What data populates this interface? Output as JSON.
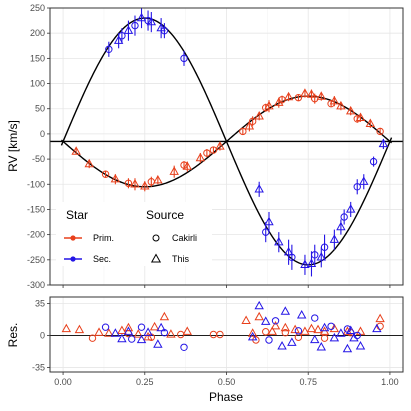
{
  "chart_data": [
    {
      "type": "scatter",
      "panel": "rv",
      "xlabel": "",
      "ylabel": "RV [km/s]",
      "xlim": [
        -0.04,
        1.04
      ],
      "ylim": [
        -300,
        250
      ],
      "x_ticks": [
        0.0,
        0.25,
        0.5,
        0.75,
        1.0
      ],
      "y_ticks": [
        -300,
        -250,
        -200,
        -150,
        -100,
        -50,
        0,
        50,
        100,
        150,
        200,
        250
      ],
      "y_tick_labels": [
        "-300",
        "-250",
        "-200",
        "-150",
        "-100",
        "-50",
        "0",
        "50",
        "100",
        "150",
        "200",
        "250"
      ],
      "grid": true,
      "reference_line": {
        "y": -15
      },
      "models": [
        {
          "series": "Prim.",
          "gamma": -15,
          "K": 90,
          "sign": -1
        },
        {
          "series": "Sec.",
          "gamma": -15,
          "K": 245,
          "sign": 1
        }
      ],
      "series": [
        {
          "name": "Prim.",
          "color": "#E8401C",
          "source": "Cakirli",
          "x": [
            0.13,
            0.2,
            0.27,
            0.37,
            0.44,
            0.46,
            0.55,
            0.58,
            0.62,
            0.67,
            0.72,
            0.77,
            0.82,
            0.9,
            0.97
          ],
          "y": [
            -80,
            -98,
            -95,
            -62,
            -38,
            -32,
            5,
            25,
            52,
            68,
            72,
            70,
            60,
            30,
            5
          ],
          "err": [
            7,
            10,
            10,
            8,
            8,
            7,
            7,
            10,
            8,
            8,
            6,
            10,
            6,
            8,
            7
          ]
        },
        {
          "name": "Prim.",
          "color": "#E8401C",
          "source": "This",
          "x": [
            0.04,
            0.08,
            0.16,
            0.22,
            0.25,
            0.29,
            0.34,
            0.38,
            0.42,
            0.48,
            0.57,
            0.6,
            0.63,
            0.66,
            0.69,
            0.74,
            0.76,
            0.79,
            0.83,
            0.85,
            0.88,
            0.91,
            0.94
          ],
          "y": [
            -35,
            -60,
            -90,
            -100,
            -104,
            -92,
            -75,
            -65,
            -48,
            -25,
            15,
            35,
            55,
            62,
            73,
            80,
            78,
            74,
            65,
            55,
            45,
            32,
            20
          ],
          "err": [
            6,
            8,
            10,
            12,
            10,
            8,
            12,
            10,
            10,
            8,
            10,
            8,
            12,
            10,
            8,
            8,
            10,
            8,
            10,
            8,
            8,
            8,
            8
          ]
        },
        {
          "name": "Sec.",
          "color": "#2415E6",
          "source": "Cakirli",
          "x": [
            0.14,
            0.18,
            0.22,
            0.26,
            0.31,
            0.37,
            0.62,
            0.7,
            0.77,
            0.8,
            0.86,
            0.9,
            0.95
          ],
          "y": [
            168,
            195,
            215,
            225,
            205,
            150,
            -195,
            -245,
            -240,
            -225,
            -165,
            -105,
            -55
          ],
          "err": [
            15,
            15,
            20,
            20,
            15,
            15,
            20,
            25,
            20,
            25,
            15,
            15,
            10
          ]
        },
        {
          "name": "Sec.",
          "color": "#2415E6",
          "source": "This",
          "x": [
            0.17,
            0.2,
            0.24,
            0.27,
            0.3,
            0.6,
            0.63,
            0.66,
            0.69,
            0.74,
            0.76,
            0.79,
            0.83,
            0.85,
            0.88,
            0.92,
            0.98
          ],
          "y": [
            185,
            205,
            230,
            222,
            210,
            -110,
            -175,
            -215,
            -235,
            -260,
            -258,
            -245,
            -210,
            -185,
            -150,
            -95,
            -20
          ],
          "err": [
            15,
            20,
            20,
            20,
            20,
            15,
            20,
            20,
            25,
            20,
            25,
            20,
            20,
            15,
            15,
            15,
            10
          ]
        }
      ],
      "legend": {
        "placement": "bottom-left",
        "star_title": "Star",
        "star_items": [
          {
            "label": "Prim.",
            "color": "#E8401C"
          },
          {
            "label": "Sec.",
            "color": "#2415E6"
          }
        ],
        "source_title": "Source",
        "source_items": [
          {
            "label": "Cakirli",
            "shape": "circle"
          },
          {
            "label": "This",
            "shape": "triangle"
          }
        ]
      }
    },
    {
      "type": "scatter",
      "panel": "residuals",
      "xlabel": "Phase",
      "ylabel": "Res.",
      "xlim": [
        -0.04,
        1.04
      ],
      "ylim": [
        -40,
        42
      ],
      "x_ticks": [
        0.0,
        0.25,
        0.5,
        0.75,
        1.0
      ],
      "x_tick_labels": [
        "0.00",
        "0.25",
        "0.50",
        "0.75",
        "1.00"
      ],
      "y_ticks": [
        -35,
        0,
        35
      ],
      "y_tick_labels": [
        "-35",
        "0",
        "35"
      ],
      "grid": true,
      "reference_line": {
        "y": 0
      },
      "series": [
        {
          "name": "Prim.",
          "color": "#E8401C",
          "source": "Cakirli",
          "x": [
            0.09,
            0.2,
            0.27,
            0.36,
            0.46,
            0.48,
            0.59,
            0.62,
            0.68,
            0.72,
            0.8,
            0.88,
            0.97
          ],
          "y": [
            -3,
            2,
            -2,
            1,
            1,
            1,
            -5,
            4,
            3,
            -2,
            -3,
            3,
            10
          ]
        },
        {
          "name": "Prim.",
          "color": "#E8401C",
          "source": "This",
          "x": [
            0.01,
            0.05,
            0.11,
            0.14,
            0.18,
            0.2,
            0.23,
            0.26,
            0.28,
            0.31,
            0.33,
            0.38,
            0.56,
            0.58,
            0.6,
            0.64,
            0.65,
            0.68,
            0.71,
            0.74,
            0.76,
            0.78,
            0.8,
            0.83,
            0.87,
            0.91,
            0.97
          ],
          "y": [
            7,
            6,
            3,
            2,
            5,
            8,
            1,
            -2,
            9,
            20,
            1,
            4,
            16,
            2,
            20,
            4,
            10,
            8,
            6,
            4,
            7,
            6,
            4,
            7,
            4,
            4,
            18
          ]
        },
        {
          "name": "Sec.",
          "color": "#2415E6",
          "source": "Cakirli",
          "x": [
            0.13,
            0.21,
            0.24,
            0.31,
            0.37,
            0.63,
            0.65,
            0.72,
            0.77,
            0.82,
            0.87,
            0.9
          ],
          "y": [
            9,
            -4,
            9,
            3,
            -13,
            -5,
            16,
            5,
            19,
            10,
            7,
            0
          ]
        },
        {
          "name": "Sec.",
          "color": "#2415E6",
          "source": "This",
          "x": [
            0.16,
            0.18,
            0.2,
            0.24,
            0.26,
            0.29,
            0.3,
            0.58,
            0.6,
            0.62,
            0.67,
            0.68,
            0.7,
            0.73,
            0.77,
            0.79,
            0.8,
            0.83,
            0.85,
            0.87,
            0.88,
            0.89,
            0.91,
            0.96
          ],
          "y": [
            2,
            -4,
            4,
            -5,
            3,
            -10,
            8,
            -2,
            32,
            15,
            -12,
            26,
            -8,
            22,
            -5,
            -13,
            8,
            -3,
            2,
            -15,
            5,
            -3,
            -12,
            7
          ]
        }
      ]
    }
  ]
}
